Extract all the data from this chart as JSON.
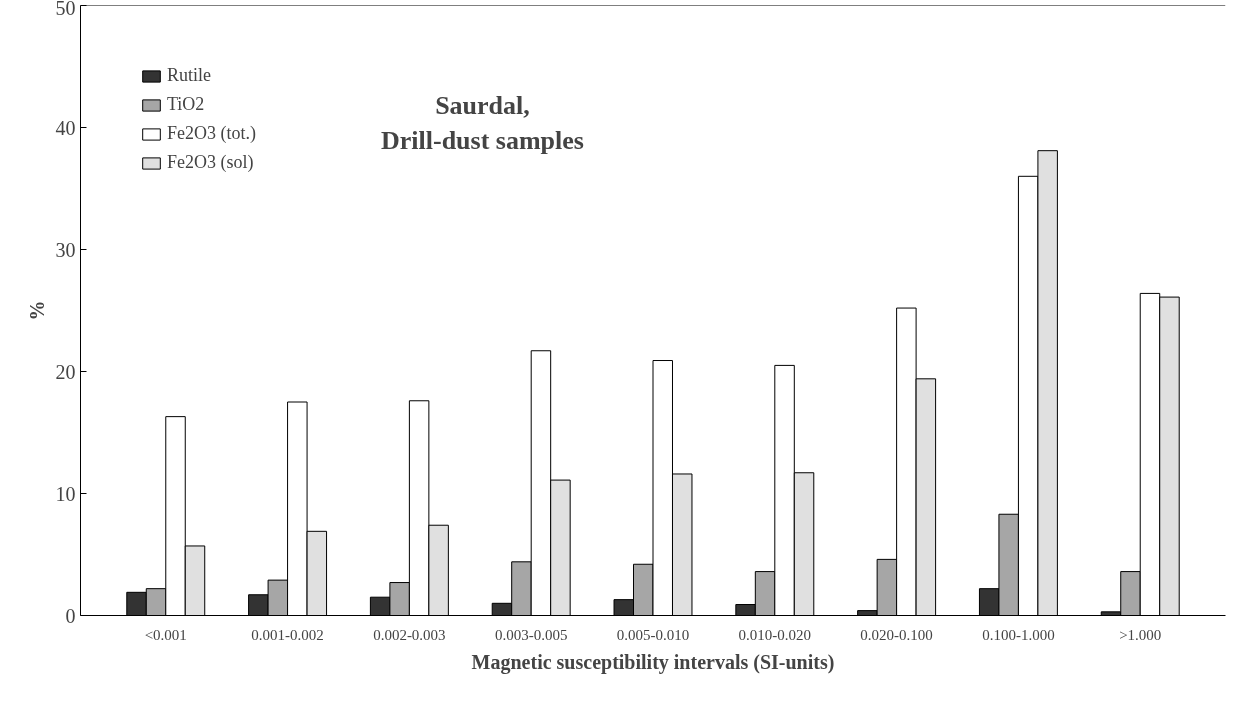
{
  "chart_data": {
    "type": "bar",
    "title": "Saurdal,\nDrill-dust samples",
    "xlabel": "Magnetic susceptibility intervals (SI-units)",
    "ylabel": "%",
    "categories": [
      "<0.001",
      "0.001-0.002",
      "0.002-0.003",
      "0.003-0.005",
      "0.005-0.010",
      "0.010-0.020",
      "0.020-0.100",
      "0.100-1.000",
      ">1.000"
    ],
    "series": [
      {
        "name": "Rutile",
        "color": "#333333",
        "values": [
          1.9,
          1.7,
          1.5,
          1.0,
          1.3,
          0.9,
          0.4,
          2.2,
          0.3
        ]
      },
      {
        "name": "TiO2",
        "color": "#a6a6a6",
        "values": [
          2.2,
          2.9,
          2.7,
          4.4,
          4.2,
          3.6,
          4.6,
          8.3,
          3.6
        ]
      },
      {
        "name": "Fe2O3 (tot.)",
        "color": "#ffffff",
        "values": [
          16.3,
          17.5,
          17.6,
          21.7,
          20.9,
          20.5,
          25.2,
          36.0,
          26.4
        ]
      },
      {
        "name": "Fe2O3 (sol)",
        "color": "#e0e0e0",
        "values": [
          5.7,
          6.9,
          7.4,
          11.1,
          11.6,
          11.7,
          19.4,
          38.1,
          26.1
        ]
      }
    ],
    "ylim": [
      0,
      50
    ],
    "yticks": [
      0,
      10,
      20,
      30,
      40,
      50
    ],
    "grid": false,
    "legend": "top left"
  }
}
